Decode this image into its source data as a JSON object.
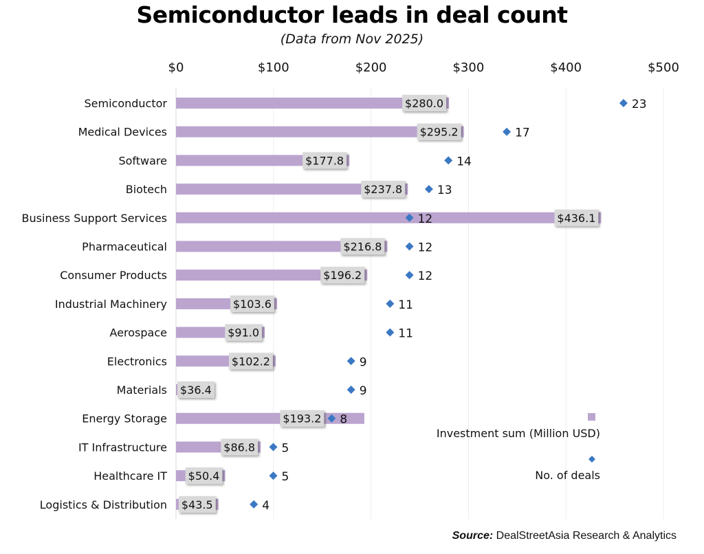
{
  "chart_data": {
    "type": "bar",
    "title": "Semiconductor leads in deal count",
    "subtitle": "(Data from Nov 2025)",
    "xlabel": "",
    "ylabel": "",
    "xlim": [
      0,
      500
    ],
    "x_ticks": [
      "$0",
      "$100",
      "$200",
      "$300",
      "$400",
      "$500"
    ],
    "x_tick_values": [
      0,
      100,
      200,
      300,
      400,
      500
    ],
    "grid": true,
    "legend_position": "bottom-right",
    "categories": [
      "Semiconductor",
      "Medical Devices",
      "Software",
      "Biotech",
      "Business Support Services",
      "Pharmaceutical",
      "Consumer Products",
      "Industrial Machinery",
      "Aerospace",
      "Electronics",
      "Materials",
      "Energy Storage",
      "IT Infrastructure",
      "Healthcare IT",
      "Logistics & Distribution"
    ],
    "series": [
      {
        "name": "Investment sum (Million USD)",
        "type": "bar",
        "color": "#bba5cf",
        "values": [
          280.0,
          295.2,
          177.8,
          237.8,
          436.1,
          216.8,
          196.2,
          103.6,
          91.0,
          102.2,
          36.4,
          193.2,
          86.8,
          50.4,
          43.5
        ],
        "labels": [
          "$280.0",
          "$295.2",
          "$177.8",
          "$237.8",
          "$436.1",
          "$216.8",
          "$196.2",
          "$103.6",
          "$91.0",
          "$102.2",
          "$36.4",
          "$193.2",
          "$86.8",
          "$50.4",
          "$43.5"
        ]
      },
      {
        "name": "No. of deals",
        "type": "scatter",
        "marker": "diamond",
        "color": "#3b78c3",
        "values": [
          23,
          17,
          14,
          13,
          12,
          12,
          12,
          11,
          11,
          9,
          9,
          8,
          5,
          5,
          4
        ]
      }
    ]
  },
  "footer": {
    "source_label": "Source:",
    "source_text": " DealStreetAsia Research & Analytics"
  }
}
